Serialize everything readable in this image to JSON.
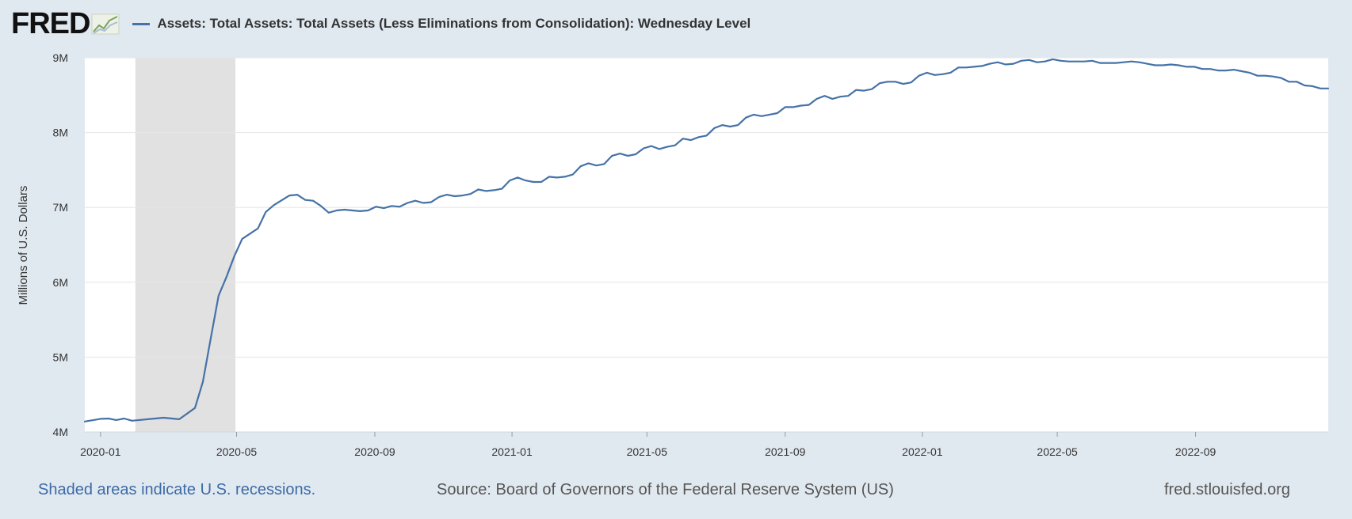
{
  "header": {
    "logo_text": "FRED",
    "logo_icon": "chart-line-icon",
    "legend_label": "Assets: Total Assets: Total Assets (Less Eliminations from Consolidation): Wednesday Level",
    "series_color": "#4572a7"
  },
  "footer": {
    "recession_note": "Shaded areas indicate U.S. recessions.",
    "source": "Source: Board of Governors of the Federal Reserve System (US)",
    "site": "fred.stlouisfed.org"
  },
  "chart_data": {
    "type": "line",
    "title": "Assets: Total Assets: Total Assets (Less Eliminations from Consolidation): Wednesday Level",
    "ylabel": "Millions of U.S. Dollars",
    "xlabel": "",
    "ylim": [
      4000000,
      9000000
    ],
    "yticks": [
      {
        "value": 4000000,
        "label": "4M"
      },
      {
        "value": 5000000,
        "label": "5M"
      },
      {
        "value": 6000000,
        "label": "6M"
      },
      {
        "value": 7000000,
        "label": "7M"
      },
      {
        "value": 8000000,
        "label": "8M"
      },
      {
        "value": 9000000,
        "label": "9M"
      }
    ],
    "xlim": [
      "2019-12-18",
      "2022-12-28"
    ],
    "xticks": [
      {
        "date": "2020-01-01",
        "label": "2020-01"
      },
      {
        "date": "2020-05-01",
        "label": "2020-05"
      },
      {
        "date": "2020-09-01",
        "label": "2020-09"
      },
      {
        "date": "2021-01-01",
        "label": "2021-01"
      },
      {
        "date": "2021-05-01",
        "label": "2021-05"
      },
      {
        "date": "2021-09-01",
        "label": "2021-09"
      },
      {
        "date": "2022-01-01",
        "label": "2022-01"
      },
      {
        "date": "2022-05-01",
        "label": "2022-05"
      },
      {
        "date": "2022-09-01",
        "label": "2022-09"
      }
    ],
    "recessions": [
      {
        "start": "2020-02-01",
        "end": "2020-04-30"
      }
    ],
    "grid": true,
    "series": [
      {
        "name": "Assets: Total Assets: Total Assets (Less Eliminations from Consolidation): Wednesday Level",
        "color": "#4572a7",
        "points": [
          [
            "2019-12-18",
            4140000
          ],
          [
            "2020-01-01",
            4175000
          ],
          [
            "2020-01-08",
            4180000
          ],
          [
            "2020-01-15",
            4160000
          ],
          [
            "2020-01-22",
            4180000
          ],
          [
            "2020-01-29",
            4150000
          ],
          [
            "2020-02-12",
            4170000
          ],
          [
            "2020-02-26",
            4190000
          ],
          [
            "2020-03-11",
            4170000
          ],
          [
            "2020-03-25",
            4320000
          ],
          [
            "2020-04-01",
            4670000
          ],
          [
            "2020-04-08",
            5250000
          ],
          [
            "2020-04-15",
            5820000
          ],
          [
            "2020-04-22",
            6070000
          ],
          [
            "2020-04-29",
            6350000
          ],
          [
            "2020-05-06",
            6580000
          ],
          [
            "2020-05-20",
            6720000
          ],
          [
            "2020-05-27",
            6940000
          ],
          [
            "2020-06-03",
            7030000
          ],
          [
            "2020-06-17",
            7160000
          ],
          [
            "2020-06-24",
            7170000
          ],
          [
            "2020-07-01",
            7100000
          ],
          [
            "2020-07-08",
            7090000
          ],
          [
            "2020-07-15",
            7020000
          ],
          [
            "2020-07-22",
            6930000
          ],
          [
            "2020-07-29",
            6960000
          ],
          [
            "2020-08-05",
            6970000
          ],
          [
            "2020-08-12",
            6960000
          ],
          [
            "2020-08-19",
            6950000
          ],
          [
            "2020-08-26",
            6960000
          ],
          [
            "2020-09-02",
            7010000
          ],
          [
            "2020-09-09",
            6990000
          ],
          [
            "2020-09-16",
            7020000
          ],
          [
            "2020-09-23",
            7010000
          ],
          [
            "2020-09-30",
            7060000
          ],
          [
            "2020-10-07",
            7090000
          ],
          [
            "2020-10-14",
            7060000
          ],
          [
            "2020-10-21",
            7070000
          ],
          [
            "2020-10-28",
            7140000
          ],
          [
            "2020-11-04",
            7170000
          ],
          [
            "2020-11-11",
            7150000
          ],
          [
            "2020-11-18",
            7160000
          ],
          [
            "2020-11-25",
            7180000
          ],
          [
            "2020-12-02",
            7240000
          ],
          [
            "2020-12-09",
            7220000
          ],
          [
            "2020-12-16",
            7230000
          ],
          [
            "2020-12-23",
            7250000
          ],
          [
            "2020-12-30",
            7360000
          ],
          [
            "2021-01-06",
            7400000
          ],
          [
            "2021-01-13",
            7360000
          ],
          [
            "2021-01-20",
            7340000
          ],
          [
            "2021-01-27",
            7340000
          ],
          [
            "2021-02-03",
            7410000
          ],
          [
            "2021-02-10",
            7400000
          ],
          [
            "2021-02-17",
            7410000
          ],
          [
            "2021-02-24",
            7440000
          ],
          [
            "2021-03-03",
            7550000
          ],
          [
            "2021-03-10",
            7590000
          ],
          [
            "2021-03-17",
            7560000
          ],
          [
            "2021-03-24",
            7580000
          ],
          [
            "2021-03-31",
            7690000
          ],
          [
            "2021-04-07",
            7720000
          ],
          [
            "2021-04-14",
            7690000
          ],
          [
            "2021-04-21",
            7710000
          ],
          [
            "2021-04-28",
            7790000
          ],
          [
            "2021-05-05",
            7820000
          ],
          [
            "2021-05-12",
            7780000
          ],
          [
            "2021-05-19",
            7810000
          ],
          [
            "2021-05-26",
            7830000
          ],
          [
            "2021-06-02",
            7920000
          ],
          [
            "2021-06-09",
            7900000
          ],
          [
            "2021-06-16",
            7940000
          ],
          [
            "2021-06-23",
            7960000
          ],
          [
            "2021-06-30",
            8060000
          ],
          [
            "2021-07-07",
            8100000
          ],
          [
            "2021-07-14",
            8080000
          ],
          [
            "2021-07-21",
            8100000
          ],
          [
            "2021-07-28",
            8200000
          ],
          [
            "2021-08-04",
            8240000
          ],
          [
            "2021-08-11",
            8220000
          ],
          [
            "2021-08-18",
            8240000
          ],
          [
            "2021-08-25",
            8260000
          ],
          [
            "2021-09-01",
            8340000
          ],
          [
            "2021-09-08",
            8340000
          ],
          [
            "2021-09-15",
            8360000
          ],
          [
            "2021-09-22",
            8370000
          ],
          [
            "2021-09-29",
            8450000
          ],
          [
            "2021-10-06",
            8490000
          ],
          [
            "2021-10-13",
            8450000
          ],
          [
            "2021-10-20",
            8480000
          ],
          [
            "2021-10-27",
            8490000
          ],
          [
            "2021-11-03",
            8570000
          ],
          [
            "2021-11-10",
            8560000
          ],
          [
            "2021-11-17",
            8580000
          ],
          [
            "2021-11-24",
            8660000
          ],
          [
            "2021-12-01",
            8680000
          ],
          [
            "2021-12-08",
            8680000
          ],
          [
            "2021-12-15",
            8650000
          ],
          [
            "2021-12-22",
            8670000
          ],
          [
            "2021-12-29",
            8760000
          ],
          [
            "2022-01-05",
            8800000
          ],
          [
            "2022-01-12",
            8770000
          ],
          [
            "2022-01-19",
            8780000
          ],
          [
            "2022-01-26",
            8800000
          ],
          [
            "2022-02-02",
            8870000
          ],
          [
            "2022-02-09",
            8870000
          ],
          [
            "2022-02-16",
            8880000
          ],
          [
            "2022-02-23",
            8890000
          ],
          [
            "2022-03-02",
            8920000
          ],
          [
            "2022-03-09",
            8940000
          ],
          [
            "2022-03-16",
            8910000
          ],
          [
            "2022-03-23",
            8920000
          ],
          [
            "2022-03-30",
            8960000
          ],
          [
            "2022-04-06",
            8970000
          ],
          [
            "2022-04-13",
            8940000
          ],
          [
            "2022-04-20",
            8950000
          ],
          [
            "2022-04-27",
            8980000
          ],
          [
            "2022-05-04",
            8960000
          ],
          [
            "2022-05-11",
            8950000
          ],
          [
            "2022-05-18",
            8950000
          ],
          [
            "2022-05-25",
            8950000
          ],
          [
            "2022-06-01",
            8960000
          ],
          [
            "2022-06-08",
            8930000
          ],
          [
            "2022-06-15",
            8930000
          ],
          [
            "2022-06-22",
            8930000
          ],
          [
            "2022-06-29",
            8940000
          ],
          [
            "2022-07-06",
            8950000
          ],
          [
            "2022-07-13",
            8940000
          ],
          [
            "2022-07-20",
            8920000
          ],
          [
            "2022-07-27",
            8900000
          ],
          [
            "2022-08-03",
            8900000
          ],
          [
            "2022-08-10",
            8910000
          ],
          [
            "2022-08-17",
            8900000
          ],
          [
            "2022-08-24",
            8880000
          ],
          [
            "2022-08-31",
            8880000
          ],
          [
            "2022-09-07",
            8850000
          ],
          [
            "2022-09-14",
            8850000
          ],
          [
            "2022-09-21",
            8830000
          ],
          [
            "2022-09-28",
            8830000
          ],
          [
            "2022-10-05",
            8840000
          ],
          [
            "2022-10-12",
            8820000
          ],
          [
            "2022-10-19",
            8800000
          ],
          [
            "2022-10-26",
            8760000
          ],
          [
            "2022-11-02",
            8760000
          ],
          [
            "2022-11-09",
            8750000
          ],
          [
            "2022-11-16",
            8730000
          ],
          [
            "2022-11-23",
            8680000
          ],
          [
            "2022-11-30",
            8680000
          ],
          [
            "2022-12-07",
            8630000
          ],
          [
            "2022-12-14",
            8620000
          ],
          [
            "2022-12-21",
            8590000
          ],
          [
            "2022-12-28",
            8590000
          ]
        ]
      }
    ]
  }
}
